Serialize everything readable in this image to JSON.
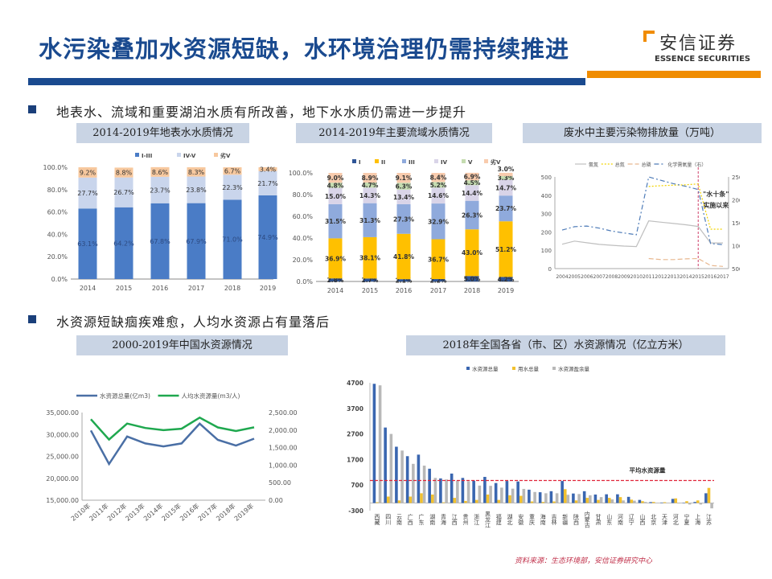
{
  "title": "水污染叠加水资源短缺，水环境治理仍需持续推进",
  "logo": {
    "cn": "安信证券",
    "en": "ESSENCE SECURITIES"
  },
  "colors": {
    "brand_blue": "#1a4a8f",
    "brand_orange": "#f08c00"
  },
  "bullets": [
    "地表水、流域和重要湖泊水质有所改善，地下水水质仍需进一步提升",
    "水资源短缺痼疾难愈，人均水资源占有量落后"
  ],
  "captions": [
    "2014-2019年地表水水质情况",
    "2014-2019年主要流域水质情况",
    "废水中主要污染物排放量（万吨）",
    "2000-2019年中国水资源情况",
    "2018年全国各省（市、区）水资源情况（亿立方米）"
  ],
  "footer": "资料来源：生态环境部，安信证券研究中心",
  "chart_data": [
    {
      "type": "bar",
      "stacked": true,
      "categories": [
        "2014",
        "2015",
        "2016",
        "2017",
        "2018",
        "2019"
      ],
      "ylim": [
        0,
        100
      ],
      "yticks": [
        "0.0%",
        "20.0%",
        "40.0%",
        "60.0%",
        "80.0%",
        "100.0%"
      ],
      "legend": "top",
      "series": [
        {
          "name": "I-III",
          "color": "#4a7cc6",
          "values": [
            63.1,
            64.2,
            67.8,
            67.9,
            71.0,
            74.9
          ],
          "labels": [
            "63.1%",
            "64.2%",
            "67.8%",
            "67.9%",
            "71.0%",
            "74.9%"
          ]
        },
        {
          "name": "IV-V",
          "color": "#c9d5ec",
          "values": [
            27.7,
            26.7,
            23.7,
            23.8,
            22.3,
            21.7
          ],
          "labels": [
            "27.7%",
            "26.7%",
            "23.7%",
            "23.8%",
            "22.3%",
            "21.7%"
          ]
        },
        {
          "name": "劣V",
          "color": "#f7c89e",
          "values": [
            9.2,
            8.8,
            8.6,
            8.3,
            6.7,
            3.4
          ],
          "labels": [
            "9.2%",
            "8.8%",
            "8.6%",
            "8.3%",
            "6.7%",
            "3.4%"
          ]
        }
      ]
    },
    {
      "type": "bar",
      "stacked": true,
      "categories": [
        "2014",
        "2015",
        "2016",
        "2017",
        "2018",
        "2019"
      ],
      "ylim": [
        0,
        100
      ],
      "yticks": [
        "0.0%",
        "20.0%",
        "40.0%",
        "60.0%",
        "80.0%",
        "100.0%"
      ],
      "legend": "top",
      "series": [
        {
          "name": "I",
          "color": "#2f5597",
          "values": [
            2.8,
            2.7,
            2.1,
            2.2,
            5.0,
            4.2
          ],
          "labels": [
            "2.8%",
            "2.7%",
            "2.1%",
            "2.2%",
            "5.0%",
            "4.2%"
          ]
        },
        {
          "name": "II",
          "color": "#ffc000",
          "values": [
            36.9,
            38.1,
            41.8,
            36.7,
            43.0,
            51.2
          ],
          "labels": [
            "36.9%",
            "38.1%",
            "41.8%",
            "36.7%",
            "43.0%",
            "51.2%"
          ]
        },
        {
          "name": "III",
          "color": "#8faadc",
          "values": [
            31.5,
            31.3,
            27.3,
            32.9,
            26.3,
            23.7
          ],
          "labels": [
            "31.5%",
            "31.3%",
            "27.3%",
            "32.9%",
            "26.3%",
            "23.7%"
          ]
        },
        {
          "name": "IV",
          "color": "#d9d4e8",
          "values": [
            15.0,
            14.3,
            13.4,
            14.6,
            14.4,
            14.7
          ],
          "labels": [
            "15.0%",
            "14.3%",
            "13.4%",
            "14.6%",
            "14.4%",
            "14.7%"
          ]
        },
        {
          "name": "V",
          "color": "#c5dcb0",
          "values": [
            4.8,
            4.7,
            6.3,
            5.2,
            4.5,
            3.3
          ],
          "labels": [
            "4.8%",
            "4.7%",
            "6.3%",
            "5.2%",
            "4.5%",
            "3.3%"
          ]
        },
        {
          "name": "劣V",
          "color": "#f8cbad",
          "values": [
            9.0,
            8.9,
            9.1,
            8.4,
            6.9,
            3.0
          ],
          "labels": [
            "9.0%",
            "8.9%",
            "9.1%",
            "8.4%",
            "6.9%",
            "3.0%"
          ]
        }
      ]
    },
    {
      "type": "line",
      "x": [
        "2004",
        "2005",
        "2006",
        "2007",
        "2008",
        "2009",
        "2010",
        "2011",
        "2012",
        "2013",
        "2014",
        "2015",
        "2016",
        "2017"
      ],
      "ylim": [
        0,
        500
      ],
      "yticks": [
        "0",
        "100",
        "200",
        "300",
        "400",
        "500"
      ],
      "y2lim": [
        500,
        2500
      ],
      "y2ticks": [
        "500",
        "1000",
        "1500",
        "2000",
        "2500"
      ],
      "legend": "top",
      "annotation": [
        "\"水十条\"",
        "实施以来"
      ],
      "marker_year": "2015",
      "series": [
        {
          "name": "氨氮",
          "color": "#bfbfbf",
          "axis": "left",
          "dash": "",
          "values": [
            133,
            150,
            141,
            132,
            127,
            123,
            120,
            260,
            253,
            246,
            239,
            230,
            140,
            140
          ]
        },
        {
          "name": "总氮",
          "color": "#f2d300",
          "axis": "left",
          "dash": "2,2",
          "values": [
            null,
            null,
            null,
            null,
            null,
            null,
            null,
            448,
            452,
            455,
            457,
            462,
            215,
            215
          ]
        },
        {
          "name": "总磷",
          "color": "#e8b890",
          "axis": "left",
          "dash": "6,3",
          "values": [
            null,
            null,
            null,
            null,
            null,
            null,
            null,
            55,
            49,
            49,
            53,
            55,
            17,
            12
          ]
        },
        {
          "name": "化学需氧量（右）",
          "color": "#4f7cb8",
          "axis": "right",
          "dash": "6,3,2,3",
          "values": [
            1340,
            1414,
            1428,
            1382,
            1320,
            1278,
            1238,
            2500,
            2424,
            2353,
            2295,
            2224,
            1046,
            1022
          ]
        }
      ]
    },
    {
      "type": "line",
      "x": [
        "2010年",
        "2011年",
        "2012年",
        "2013年",
        "2014年",
        "2015年",
        "2016年",
        "2017年",
        "2018年",
        "2019年"
      ],
      "ylim": [
        15000,
        35000
      ],
      "yticks": [
        "15,000.00",
        "20,000.00",
        "25,000.00",
        "30,000.00",
        "35,000.00"
      ],
      "y2lim": [
        0,
        2500
      ],
      "y2ticks": [
        "0.00",
        "500.00",
        "1,000.00",
        "1,500.00",
        "2,000.00",
        "2,500.00"
      ],
      "legend": "top",
      "series": [
        {
          "name": "水资源总量(亿m3)",
          "color": "#4a6fa5",
          "axis": "left",
          "values": [
            30906,
            23257,
            29529,
            27958,
            27267,
            27963,
            32466,
            28761,
            27463,
            29041
          ]
        },
        {
          "name": "人均水资源量(m3/人)",
          "color": "#1fa84f",
          "axis": "right",
          "values": [
            2310,
            1730,
            2186,
            2060,
            1998,
            2039,
            2355,
            2075,
            1972,
            2078
          ]
        }
      ]
    },
    {
      "type": "bar",
      "categories": [
        "西藏",
        "四川",
        "云南",
        "广西",
        "广东",
        "湖南",
        "青海",
        "江西",
        "贵州",
        "浙江",
        "黑龙江",
        "福建",
        "湖北",
        "安徽",
        "重庆",
        "海南",
        "吉林",
        "新疆",
        "陕西",
        "内蒙古",
        "甘肃",
        "山东",
        "河南",
        "辽宁",
        "山西",
        "北京",
        "天津",
        "河北",
        "宁夏",
        "上海",
        "江苏"
      ],
      "ylim": [
        -300,
        4700
      ],
      "yticks": [
        "-300",
        "700",
        "1700",
        "2700",
        "3700",
        "4700"
      ],
      "legend": "top",
      "reference_line": {
        "label": "平均水资源量",
        "value": 880,
        "color": "#e0263a"
      },
      "series": [
        {
          "name": "水资源总量",
          "color": "#3a66b0",
          "values": [
            4660,
            2950,
            2200,
            1830,
            1890,
            1340,
            960,
            1150,
            980,
            870,
            1020,
            780,
            860,
            840,
            520,
            420,
            460,
            860,
            370,
            460,
            330,
            340,
            340,
            240,
            120,
            35,
            18,
            160,
            12,
            40,
            380
          ]
        },
        {
          "name": "用水总量",
          "color": "#f2c12e",
          "values": [
            30,
            250,
            100,
            250,
            380,
            330,
            25,
            200,
            80,
            120,
            330,
            120,
            300,
            280,
            60,
            40,
            60,
            540,
            100,
            200,
            120,
            200,
            230,
            130,
            70,
            40,
            30,
            180,
            70,
            100,
            590
          ]
        },
        {
          "name": "水资源盈余量",
          "color": "#b8b8b8",
          "values": [
            4600,
            2700,
            2050,
            1530,
            1460,
            980,
            920,
            870,
            850,
            680,
            670,
            600,
            560,
            550,
            430,
            380,
            380,
            320,
            350,
            300,
            230,
            140,
            100,
            90,
            40,
            0,
            -10,
            -20,
            -60,
            -60,
            -210
          ]
        }
      ]
    }
  ]
}
